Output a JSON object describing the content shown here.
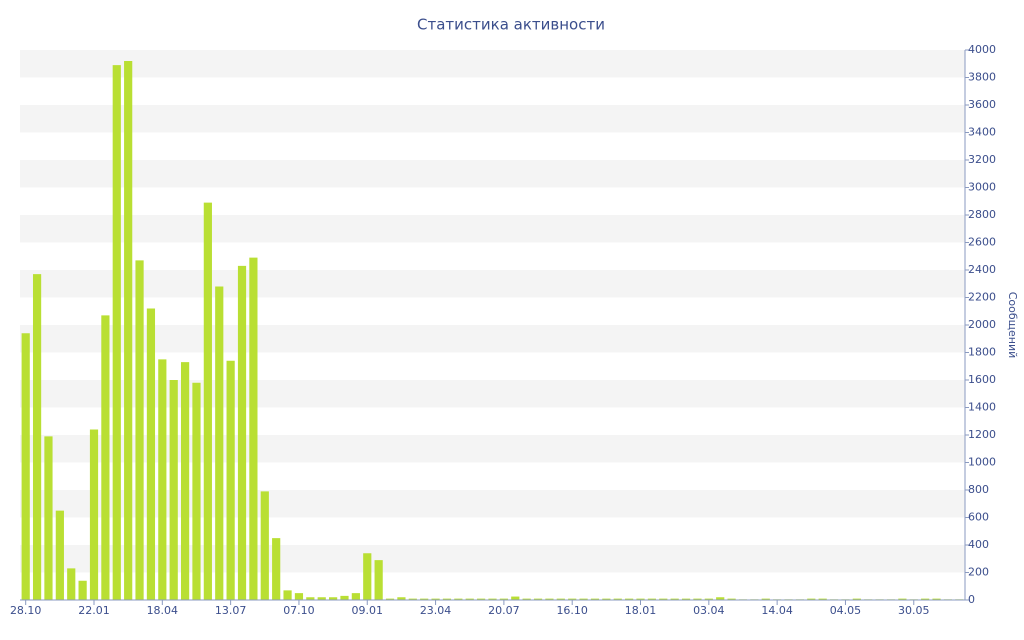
{
  "chart_data": {
    "type": "bar",
    "title": "Статистика активности",
    "y_label": "Сообщений",
    "categories": [
      "28.10",
      null,
      null,
      null,
      null,
      null,
      "22.01",
      null,
      null,
      null,
      null,
      null,
      "18.04",
      null,
      null,
      null,
      null,
      null,
      "13.07",
      null,
      null,
      null,
      null,
      null,
      "07.10",
      null,
      null,
      null,
      null,
      null,
      "09.01",
      null,
      null,
      null,
      null,
      null,
      "23.04",
      null,
      null,
      null,
      null,
      null,
      "20.07",
      null,
      null,
      null,
      null,
      null,
      "16.10",
      null,
      null,
      null,
      null,
      null,
      "18.01",
      null,
      null,
      null,
      null,
      null,
      "03.04",
      null,
      null,
      null,
      null,
      null,
      "14.04",
      null,
      null,
      null,
      null,
      null,
      "04.05",
      null,
      null,
      null,
      null,
      null,
      "30.05",
      null,
      null,
      null,
      null
    ],
    "values": [
      1940,
      2370,
      1190,
      650,
      230,
      140,
      1240,
      2070,
      3890,
      3920,
      2470,
      2120,
      1750,
      1600,
      1730,
      1580,
      2890,
      2280,
      1740,
      2430,
      2490,
      790,
      450,
      70,
      50,
      20,
      20,
      20,
      30,
      50,
      340,
      290,
      10,
      20,
      10,
      10,
      10,
      10,
      10,
      10,
      10,
      10,
      10,
      25,
      10,
      10,
      10,
      10,
      10,
      10,
      10,
      10,
      10,
      10,
      10,
      10,
      10,
      10,
      10,
      10,
      10,
      20,
      10,
      5,
      5,
      10,
      5,
      5,
      5,
      10,
      10,
      5,
      5,
      10,
      5,
      5,
      5,
      10,
      5,
      10,
      10,
      5,
      5
    ],
    "color": "#b9df33",
    "ylim": [
      0,
      4000
    ],
    "yticks": [
      0,
      200,
      400,
      600,
      800,
      1000,
      1200,
      1400,
      1600,
      1800,
      2000,
      2200,
      2400,
      2600,
      2800,
      3000,
      3200,
      3400,
      3600,
      3800,
      4000
    ],
    "grid": true,
    "y_axis_side": "right"
  }
}
